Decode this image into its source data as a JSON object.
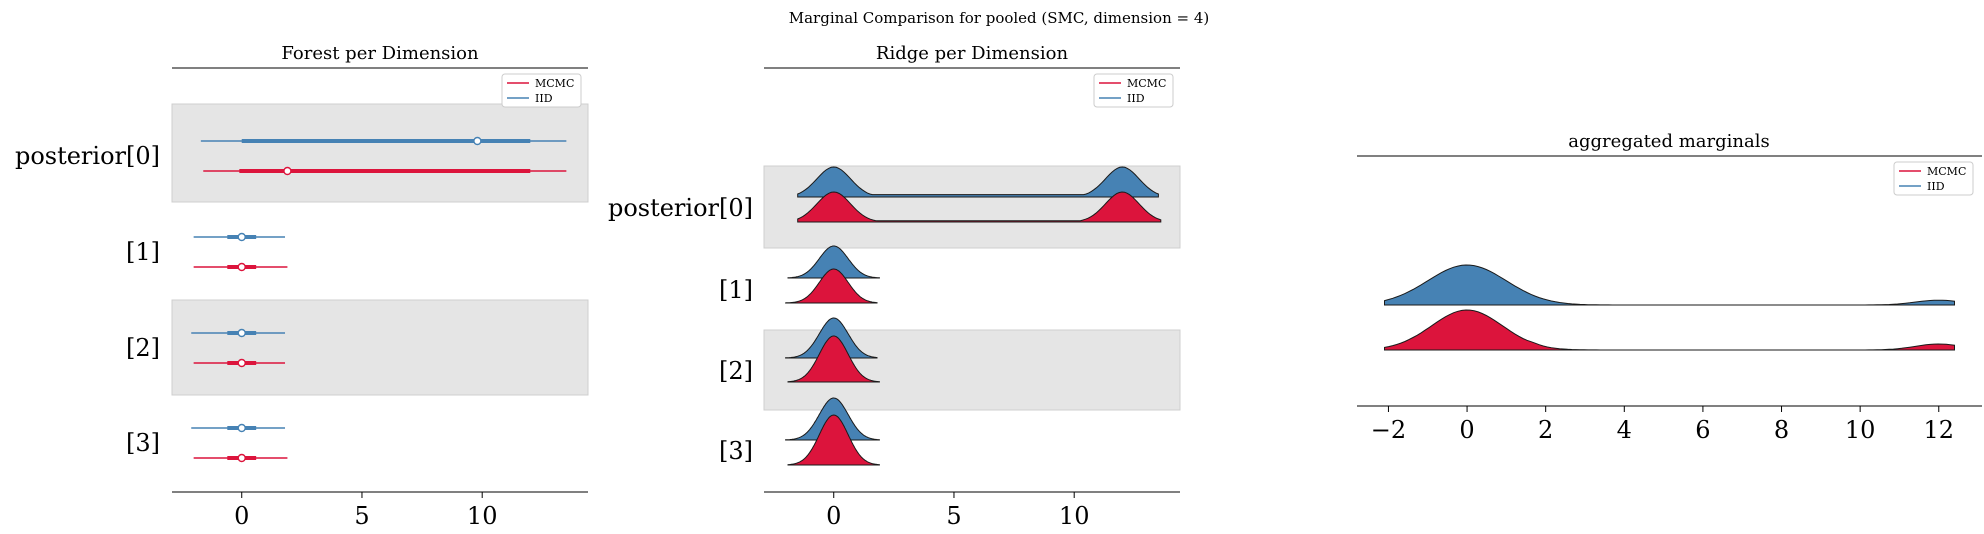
{
  "figure": {
    "title": "Marginal Comparison for pooled (SMC, dimension = 4)"
  },
  "colors": {
    "mcmc": "#DC143C",
    "iid": "#4682B4",
    "band": "#E5E5E5"
  },
  "chart_data": [
    {
      "type": "forest",
      "title": "Forest per Dimension",
      "ylabels": [
        "posterior[0]",
        "[1]",
        "[2]",
        "[3]"
      ],
      "xticks": [
        0,
        5,
        10
      ],
      "xlim": [
        -2.9,
        14.4
      ],
      "legend": {
        "placement": "top-right",
        "entries": [
          "MCMC",
          "IID"
        ]
      },
      "series": [
        {
          "name": "IID",
          "rows": [
            {
              "point": 9.8,
              "hdi_low": -1.7,
              "hdi_high": 13.5,
              "iqr_low": 0.0,
              "iqr_high": 12.0
            },
            {
              "point": 0.0,
              "hdi_low": -2.0,
              "hdi_high": 1.8,
              "iqr_low": -0.6,
              "iqr_high": 0.6
            },
            {
              "point": 0.0,
              "hdi_low": -2.1,
              "hdi_high": 1.8,
              "iqr_low": -0.6,
              "iqr_high": 0.6
            },
            {
              "point": 0.0,
              "hdi_low": -2.1,
              "hdi_high": 1.8,
              "iqr_low": -0.6,
              "iqr_high": 0.6
            }
          ]
        },
        {
          "name": "MCMC",
          "rows": [
            {
              "point": 1.9,
              "hdi_low": -1.6,
              "hdi_high": 13.5,
              "iqr_low": -0.1,
              "iqr_high": 12.0
            },
            {
              "point": 0.0,
              "hdi_low": -2.0,
              "hdi_high": 1.9,
              "iqr_low": -0.6,
              "iqr_high": 0.6
            },
            {
              "point": 0.0,
              "hdi_low": -2.0,
              "hdi_high": 1.8,
              "iqr_low": -0.6,
              "iqr_high": 0.6
            },
            {
              "point": 0.0,
              "hdi_low": -2.0,
              "hdi_high": 1.9,
              "iqr_low": -0.6,
              "iqr_high": 0.6
            }
          ]
        }
      ]
    },
    {
      "type": "ridgeline",
      "title": "Ridge per Dimension",
      "ylabels": [
        "posterior[0]",
        "[1]",
        "[2]",
        "[3]"
      ],
      "xticks": [
        0,
        5,
        10
      ],
      "xlim": [
        -2.9,
        14.4
      ],
      "legend": {
        "placement": "top-right",
        "entries": [
          "MCMC",
          "IID"
        ]
      },
      "series": [
        {
          "name": "IID",
          "rows": [
            {
              "range": [
                -1.5,
                13.5
              ],
              "peaks": [
                [
                  0,
                  1.0,
                  0.7
                ],
                [
                  12,
                  1.0,
                  0.7
                ]
              ],
              "floor": 0.08
            },
            {
              "range": [
                -1.9,
                1.9
              ],
              "peaks": [
                [
                  0,
                  1.0,
                  0.6
                ]
              ],
              "floor": 0
            },
            {
              "range": [
                -2.0,
                1.8
              ],
              "peaks": [
                [
                  0,
                  1.0,
                  0.6
                ]
              ],
              "floor": 0
            },
            {
              "range": [
                -2.0,
                1.9
              ],
              "peaks": [
                [
                  0,
                  1.0,
                  0.6
                ]
              ],
              "floor": 0
            }
          ]
        },
        {
          "name": "MCMC",
          "rows": [
            {
              "range": [
                -1.5,
                13.6
              ],
              "peaks": [
                [
                  0,
                  1.0,
                  0.7
                ],
                [
                  12,
                  1.0,
                  0.7
                ]
              ],
              "floor": 0.04
            },
            {
              "range": [
                -2.0,
                1.8
              ],
              "peaks": [
                [
                  0,
                  1.0,
                  0.6
                ]
              ],
              "floor": 0
            },
            {
              "range": [
                -1.9,
                1.9
              ],
              "peaks": [
                [
                  0,
                  1.0,
                  0.6
                ]
              ],
              "floor": 0
            },
            {
              "range": [
                -1.9,
                1.9
              ],
              "peaks": [
                [
                  0,
                  1.0,
                  0.6
                ]
              ],
              "floor": 0
            }
          ]
        }
      ]
    },
    {
      "type": "ridgeline",
      "title": "aggregated marginals",
      "xticks": [
        -2,
        0,
        2,
        4,
        6,
        8,
        10,
        12
      ],
      "xtick_labels": [
        "−2",
        "0",
        "2",
        "4",
        "6",
        "8",
        "10",
        "12"
      ],
      "xlim": [
        -2.8,
        13.1
      ],
      "legend": {
        "placement": "top-right",
        "entries": [
          "MCMC",
          "IID"
        ]
      },
      "series": [
        {
          "name": "IID",
          "range": [
            -2.1,
            12.4
          ],
          "peaks": [
            [
              0,
              1.0,
              1.0
            ],
            [
              12,
              0.12,
              0.6
            ]
          ],
          "floor": 0
        },
        {
          "name": "MCMC",
          "range": [
            -2.1,
            12.4
          ],
          "peaks": [
            [
              0,
              1.0,
              0.9
            ],
            [
              1.2,
              0.3,
              0.5
            ],
            [
              12,
              0.15,
              0.6
            ]
          ],
          "floor": 0
        }
      ]
    }
  ]
}
